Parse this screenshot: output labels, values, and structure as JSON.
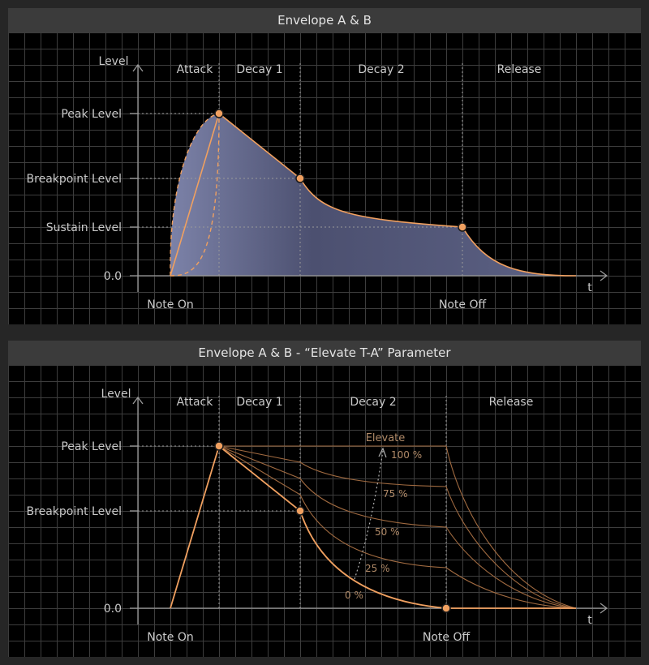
{
  "top": {
    "title": "Envelope A & B",
    "axis": {
      "y_label": "Level",
      "x_label": "t"
    },
    "phases": [
      "Attack",
      "Decay 1",
      "Decay 2",
      "Release"
    ],
    "levels": {
      "peak": "Peak Level",
      "breakpoint": "Breakpoint Level",
      "sustain": "Sustain Level",
      "zero": "0.0"
    },
    "events": {
      "note_on": "Note On",
      "note_off": "Note Off"
    }
  },
  "bottom": {
    "title": "Envelope A & B - “Elevate T-A” Parameter",
    "axis": {
      "y_label": "Level",
      "x_label": "t"
    },
    "phases": [
      "Attack",
      "Decay 1",
      "Decay 2",
      "Release"
    ],
    "levels": {
      "peak": "Peak Level",
      "breakpoint": "Breakpoint Level",
      "zero": "0.0"
    },
    "events": {
      "note_on": "Note On",
      "note_off": "Note Off"
    },
    "elevate": {
      "label": "Elevate",
      "steps": [
        "100 %",
        "75 %",
        "50 %",
        "25 %",
        "0 %"
      ]
    }
  },
  "colors": {
    "accent": "#f0a060",
    "fill": "#5a5f7e",
    "guide": "#8a8a8a",
    "text": "#c9c9c9",
    "curve_dim": "#a06a40"
  }
}
